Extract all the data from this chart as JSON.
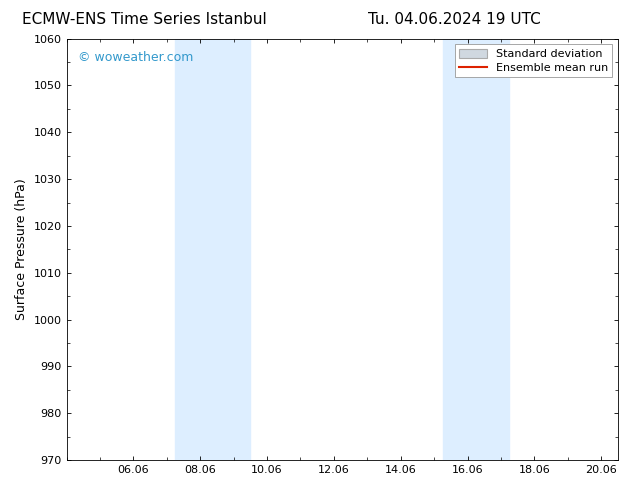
{
  "title_left": "ECMW-ENS Time Series Istanbul",
  "title_right": "Tu. 04.06.2024 19 UTC",
  "ylabel": "Surface Pressure (hPa)",
  "ylim": [
    970,
    1060
  ],
  "yticks": [
    970,
    980,
    990,
    1000,
    1010,
    1020,
    1030,
    1040,
    1050,
    1060
  ],
  "xlim": [
    0,
    16.5
  ],
  "xtick_labels": [
    "06.06",
    "08.06",
    "10.06",
    "12.06",
    "14.06",
    "16.06",
    "18.06",
    "20.06"
  ],
  "xtick_positions": [
    2,
    4,
    6,
    8,
    10,
    12,
    14,
    16
  ],
  "shaded_bands": [
    {
      "x_start": 3.25,
      "x_end": 5.5
    },
    {
      "x_start": 11.25,
      "x_end": 13.25
    }
  ],
  "band_color": "#ddeeff",
  "background_color": "#ffffff",
  "watermark_text": "© woweather.com",
  "watermark_color": "#3399cc",
  "legend_std_color": "#d0d8e0",
  "legend_std_edge": "#aaaaaa",
  "legend_mean_color": "#dd2200",
  "title_fontsize": 11,
  "axis_label_fontsize": 9,
  "tick_fontsize": 8,
  "watermark_fontsize": 9,
  "legend_fontsize": 8
}
